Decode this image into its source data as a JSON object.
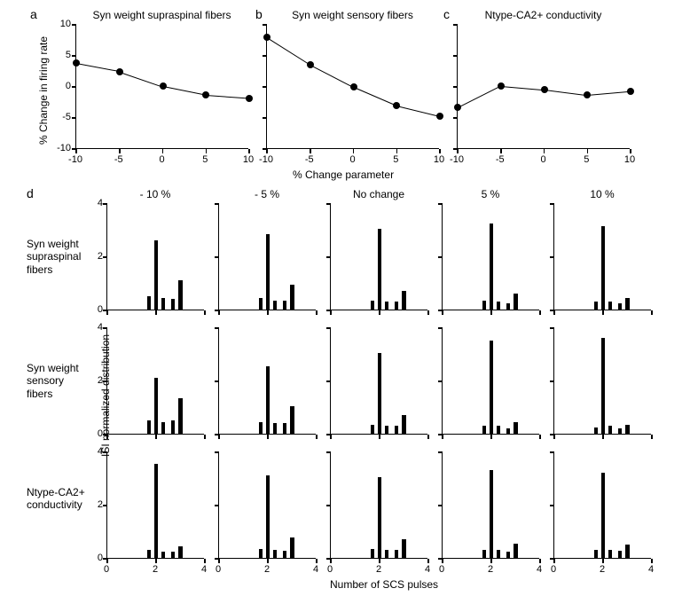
{
  "colors": {
    "line": "#000000",
    "marker": "#000000",
    "axis": "#000000",
    "bar": "#000000",
    "bg": "#ffffff"
  },
  "fonts": {
    "panel_label": 14,
    "title": 12,
    "axis_label": 12,
    "tick": 11
  },
  "top": {
    "xlim": [
      -10,
      10
    ],
    "ylim": [
      -10,
      10
    ],
    "xticks": [
      -10,
      -5,
      0,
      5,
      10
    ],
    "yticks": [
      -10,
      -5,
      0,
      5,
      10
    ],
    "panels": {
      "a": {
        "title": "Syn weight supraspinal fibers",
        "x": [
          -10,
          -5,
          0,
          5,
          10
        ],
        "y": [
          3.8,
          2.5,
          0.1,
          -1.3,
          -1.8
        ]
      },
      "b": {
        "title": "Syn weight sensory fibers",
        "x": [
          -10,
          -5,
          0,
          5,
          10
        ],
        "y": [
          8.0,
          3.6,
          0.0,
          -3.0,
          -4.7
        ]
      },
      "c": {
        "title": "Ntype-CA2+ conductivity",
        "x": [
          -10,
          -5,
          0,
          5,
          10
        ],
        "y": [
          -3.3,
          0.2,
          -0.4,
          -1.3,
          -0.7
        ]
      }
    },
    "ylabel": "% Change in firing rate",
    "xlabel": "% Change parameter"
  },
  "grid": {
    "xlim": [
      0,
      4
    ],
    "ylim": [
      0,
      4
    ],
    "xticks": [
      0,
      2,
      4
    ],
    "yticks": [
      0,
      2,
      4
    ],
    "col_headers": [
      "- 10 %",
      "- 5 %",
      "No change",
      "5 %",
      "10 %"
    ],
    "row_labels": [
      "Syn weight\nsupraspinal\nfibers",
      "Syn weight\nsensory\nfibers",
      "Ntype-CA2+\nconductivity"
    ],
    "ylabel": "ISI normalized distribution",
    "xlabel": "Number of SCS pulses",
    "bar_width": 0.16,
    "bar_x": [
      1.7,
      2.0,
      2.3,
      2.7,
      3.0
    ],
    "data": [
      [
        [
          0.5,
          2.6,
          0.45,
          0.4,
          1.1
        ],
        [
          0.45,
          2.85,
          0.35,
          0.35,
          0.95
        ],
        [
          0.35,
          3.05,
          0.3,
          0.3,
          0.7
        ],
        [
          0.35,
          3.25,
          0.3,
          0.25,
          0.6
        ],
        [
          0.3,
          3.15,
          0.3,
          0.25,
          0.45
        ]
      ],
      [
        [
          0.5,
          2.1,
          0.45,
          0.5,
          1.35
        ],
        [
          0.45,
          2.55,
          0.4,
          0.4,
          1.05
        ],
        [
          0.35,
          3.05,
          0.3,
          0.3,
          0.7
        ],
        [
          0.3,
          3.5,
          0.3,
          0.2,
          0.45
        ],
        [
          0.25,
          3.6,
          0.3,
          0.2,
          0.35
        ]
      ],
      [
        [
          0.3,
          3.55,
          0.25,
          0.25,
          0.45
        ],
        [
          0.35,
          3.1,
          0.3,
          0.28,
          0.78
        ],
        [
          0.35,
          3.05,
          0.3,
          0.3,
          0.7
        ],
        [
          0.3,
          3.3,
          0.3,
          0.25,
          0.55
        ],
        [
          0.3,
          3.2,
          0.3,
          0.28,
          0.5
        ]
      ]
    ]
  },
  "labels": {
    "a": "a",
    "b": "b",
    "c": "c",
    "d": "d"
  }
}
